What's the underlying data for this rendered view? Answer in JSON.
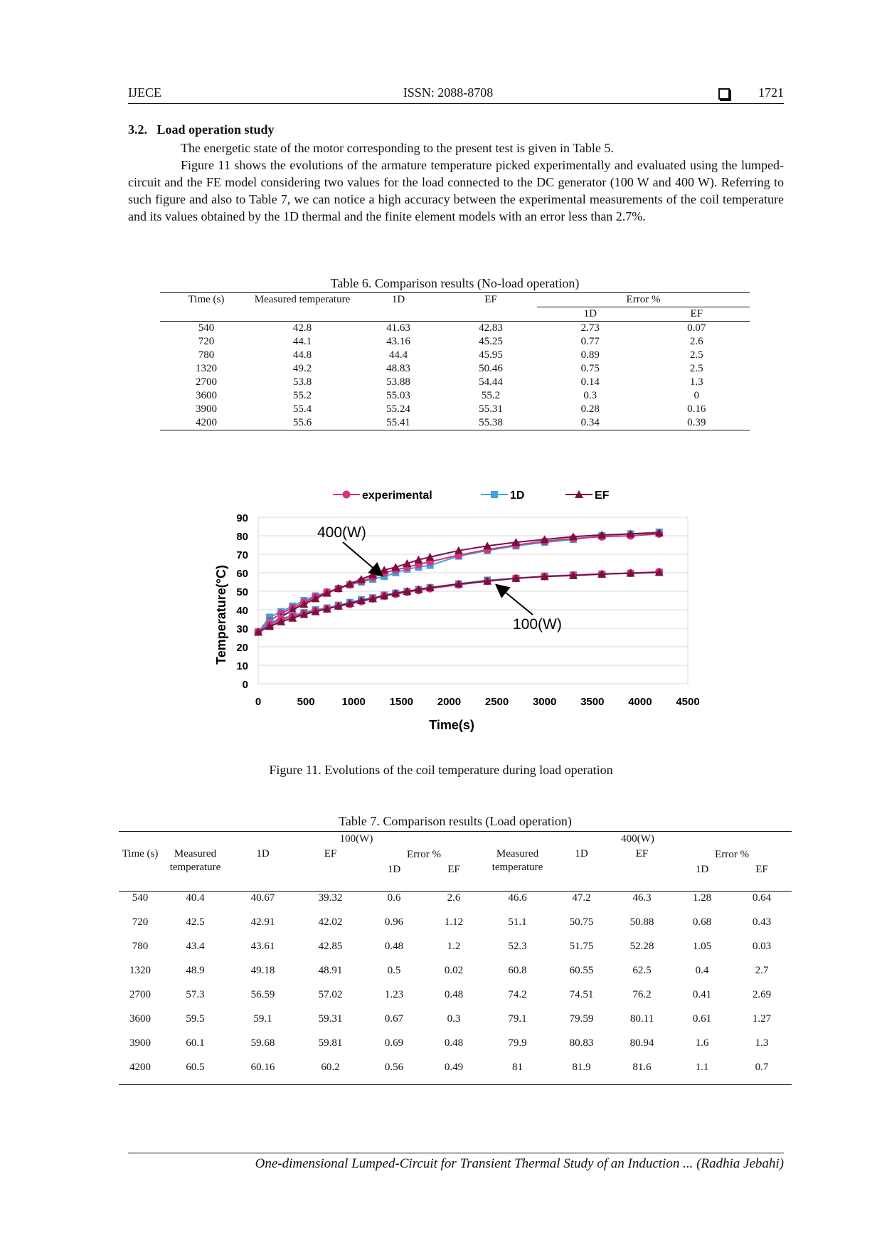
{
  "header": {
    "journal": "IJECE",
    "issn": "ISSN: 2088-8708",
    "page": "1721"
  },
  "section": {
    "heading": "3.2.   Load operation study",
    "paragraphs": [
      "The energetic state of the motor corresponding to the present test is given in Table 5.",
      "Figure 11 shows the evolutions of the armature temperature picked experimentally and evaluated using the lumped-circuit and the FE model considering two values for the load connected to the DC generator (100 W and 400 W). Referring to such figure and also to Table 7, we can notice a high accuracy between the experimental measurements of the coil temperature and its values obtained by the 1D thermal and the finite element models with an error less than 2.7%."
    ]
  },
  "table6": {
    "caption": "Table 6. Comparison results (No-load operation)",
    "header": [
      "Time (s)",
      "Measured temperature",
      "1D",
      "EF",
      "Error %"
    ],
    "subheader": [
      "1D",
      "EF"
    ],
    "rows": [
      [
        "540",
        "42.8",
        "41.63",
        "42.83",
        "2.73",
        "0.07"
      ],
      [
        "720",
        "44.1",
        "43.16",
        "45.25",
        "0.77",
        "2.6"
      ],
      [
        "780",
        "44.8",
        "44.4",
        "45.95",
        "0.89",
        "2.5"
      ],
      [
        "1320",
        "49.2",
        "48.83",
        "50.46",
        "0.75",
        "2.5"
      ],
      [
        "2700",
        "53.8",
        "53.88",
        "54.44",
        "0.14",
        "1.3"
      ],
      [
        "3600",
        "55.2",
        "55.03",
        "55.2",
        "0.3",
        "0"
      ],
      [
        "3900",
        "55.4",
        "55.24",
        "55.31",
        "0.28",
        "0.16"
      ],
      [
        "4200",
        "55.6",
        "55.41",
        "55.38",
        "0.34",
        "0.39"
      ]
    ]
  },
  "chart_data": {
    "type": "line",
    "x": [
      0,
      120,
      240,
      360,
      480,
      600,
      720,
      840,
      960,
      1080,
      1200,
      1320,
      1440,
      1560,
      1680,
      1800,
      2100,
      2400,
      2700,
      3000,
      3300,
      3600,
      3900,
      4200
    ],
    "xlim": [
      0,
      4500
    ],
    "xticks": [
      0,
      500,
      1000,
      1500,
      2000,
      2500,
      3000,
      3500,
      4000,
      4500
    ],
    "ylim": [
      0,
      90
    ],
    "yticks": [
      0,
      10,
      20,
      30,
      40,
      50,
      60,
      70,
      80,
      90
    ],
    "x_label": "Time(s)",
    "y_label": "Temperature(°C)",
    "grid": true,
    "series": [
      {
        "name": "experimental",
        "color": "#d8327a",
        "marker": "circle",
        "values": [
          28,
          34,
          38,
          41,
          44,
          47,
          49.5,
          51.5,
          53.5,
          55.5,
          57.5,
          60,
          61.5,
          63,
          64.5,
          66,
          69.5,
          72.5,
          75,
          77,
          78.5,
          79.5,
          80,
          81
        ]
      },
      {
        "name": "1D",
        "color": "#3fa4dc",
        "marker": "square",
        "values": [
          28,
          36,
          39,
          42,
          45,
          47.5,
          49.5,
          51.5,
          53.5,
          55,
          56.5,
          58,
          60,
          62,
          63,
          64,
          69,
          72,
          74.5,
          76.5,
          78,
          80,
          81,
          82
        ]
      },
      {
        "name": "EF",
        "color": "#7a1042",
        "marker": "triangle",
        "values": [
          28,
          32,
          36,
          40,
          43,
          46,
          49,
          51.5,
          54,
          56.5,
          59,
          61.5,
          63,
          65,
          67,
          68.5,
          72,
          74.5,
          76.5,
          78,
          79.5,
          80.5,
          81,
          81.6
        ]
      },
      {
        "color": "#d8327a",
        "marker": "circle",
        "values": [
          28,
          32,
          34.5,
          36.5,
          38,
          39.5,
          40.5,
          42,
          43,
          44.5,
          46,
          47.5,
          48.5,
          49.5,
          50.5,
          51.5,
          53.5,
          55.5,
          57,
          58,
          58.7,
          59.3,
          59.8,
          60.5
        ]
      },
      {
        "color": "#3fa4dc",
        "marker": "square",
        "values": [
          28,
          33,
          35,
          37,
          38.5,
          40,
          41,
          42.5,
          44,
          45.5,
          46.5,
          48,
          49,
          50,
          51,
          52,
          54,
          56,
          57,
          58.2,
          58.8,
          59.3,
          59.7,
          60.2
        ]
      },
      {
        "color": "#7a1042",
        "marker": "triangle",
        "values": [
          28,
          31,
          33.5,
          35.5,
          37.5,
          39,
          40.5,
          42,
          43.5,
          45,
          46,
          47.5,
          49,
          50,
          51,
          52,
          54,
          55.5,
          57,
          58,
          58.5,
          59.3,
          59.8,
          60.2
        ]
      }
    ],
    "annotations": [
      "400(W)",
      "100(W)"
    ]
  },
  "figure": {
    "caption": "Figure 11. Evolutions of the coil temperature during load operation"
  },
  "table7": {
    "caption": "Table 7. Comparison results (Load operation)",
    "groups": [
      "100(W)",
      "400(W)"
    ],
    "header": [
      "Time (s)",
      "Measured temperature",
      "1D",
      "EF",
      "Error %",
      "Measured temperature",
      "1D",
      "EF",
      "Error %"
    ],
    "subheader": [
      "1D",
      "EF",
      "1D",
      "EF"
    ],
    "rows": [
      [
        "540",
        "40.4",
        "40.67",
        "39.32",
        "0.6",
        "2.6",
        "46.6",
        "47.2",
        "46.3",
        "1.28",
        "0.64"
      ],
      [
        "720",
        "42.5",
        "42.91",
        "42.02",
        "0.96",
        "1.12",
        "51.1",
        "50.75",
        "50.88",
        "0.68",
        "0.43"
      ],
      [
        "780",
        "43.4",
        "43.61",
        "42.85",
        "0.48",
        "1.2",
        "52.3",
        "51.75",
        "52.28",
        "1.05",
        "0.03"
      ],
      [
        "1320",
        "48.9",
        "49.18",
        "48.91",
        "0.5",
        "0.02",
        "60.8",
        "60.55",
        "62.5",
        "0.4",
        "2.7"
      ],
      [
        "2700",
        "57.3",
        "56.59",
        "57.02",
        "1.23",
        "0.48",
        "74.2",
        "74.51",
        "76.2",
        "0.41",
        "2.69"
      ],
      [
        "3600",
        "59.5",
        "59.1",
        "59.31",
        "0.67",
        "0.3",
        "79.1",
        "79.59",
        "80.11",
        "0.61",
        "1.27"
      ],
      [
        "3900",
        "60.1",
        "59.68",
        "59.81",
        "0.69",
        "0.48",
        "79.9",
        "80.83",
        "80.94",
        "1.6",
        "1.3"
      ],
      [
        "4200",
        "60.5",
        "60.16",
        "60.2",
        "0.56",
        "0.49",
        "81",
        "81.9",
        "81.6",
        "1.1",
        "0.7"
      ]
    ]
  },
  "footer": "One-dimensional Lumped-Circuit for Transient Thermal Study of an Induction ... (Radhia Jebahi)"
}
